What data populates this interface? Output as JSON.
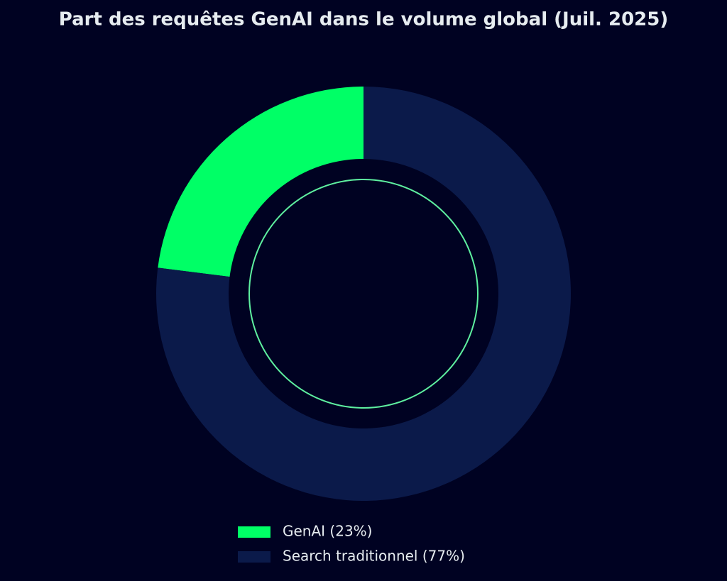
{
  "chart_data": {
    "type": "pie",
    "title": "Part des requêtes GenAI dans le volume global (Juil. 2025)",
    "categories": [
      "GenAI (23%)",
      "Search traditionnel (77%)"
    ],
    "values": [
      23,
      77
    ],
    "colors": [
      "#00ff66",
      "#0b1a4a"
    ],
    "legend": "bottom"
  }
}
